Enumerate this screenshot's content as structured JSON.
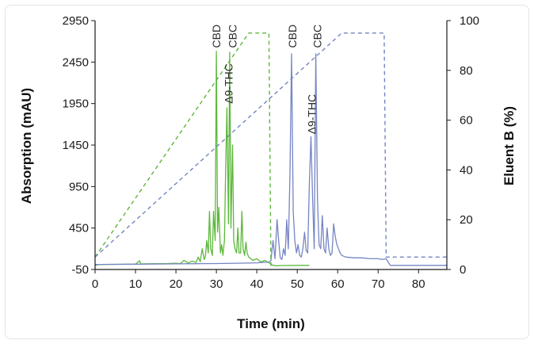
{
  "chart_data": {
    "type": "line",
    "xlabel": "Time (min)",
    "ylabel": "Absorption (mAU)",
    "y2label": "Eluent B (%)",
    "xlim": [
      0,
      87
    ],
    "ylim": [
      -50,
      2950
    ],
    "y2lim": [
      0,
      100
    ],
    "xticks": [
      "0",
      "10",
      "20",
      "30",
      "40",
      "50",
      "60",
      "70",
      "80"
    ],
    "yticks": [
      "-50",
      "450",
      "950",
      "1450",
      "1950",
      "2450",
      "2950"
    ],
    "y2ticks": [
      "0",
      "20",
      "40",
      "60",
      "80",
      "100"
    ],
    "grid": false,
    "colors": {
      "green": "#5db83c",
      "blue": "#7585c3",
      "axis": "#1a1a1a"
    },
    "series": [
      {
        "color": "#5db83c",
        "axis": "left",
        "style": "solid",
        "x": [
          0,
          1,
          5,
          10,
          11,
          11.3,
          11.6,
          15,
          18,
          20,
          21,
          22,
          23,
          24,
          25,
          25.5,
          26,
          26.5,
          27,
          27.3,
          27.6,
          28,
          28.3,
          28.6,
          29,
          29.3,
          29.7,
          30,
          30.3,
          30.6,
          31,
          31.3,
          31.6,
          32,
          32.3,
          32.6,
          33,
          33.3,
          33.6,
          34,
          34.3,
          34.6,
          35,
          35.3,
          35.6,
          36,
          36.3,
          36.6,
          37,
          37.3,
          37.6,
          38,
          39,
          40,
          41,
          42,
          43,
          43.5,
          44,
          45,
          46,
          50,
          53
        ],
        "y": [
          0,
          10,
          12,
          15,
          55,
          15,
          18,
          20,
          22,
          25,
          20,
          60,
          28,
          50,
          35,
          100,
          45,
          200,
          70,
          110,
          300,
          150,
          650,
          200,
          120,
          650,
          300,
          2580,
          400,
          700,
          150,
          250,
          120,
          300,
          1150,
          1900,
          500,
          2570,
          450,
          1450,
          300,
          200,
          150,
          450,
          150,
          150,
          650,
          200,
          120,
          280,
          150,
          100,
          60,
          80,
          40,
          60,
          30,
          15,
          0,
          -5,
          -2,
          0,
          0
        ]
      },
      {
        "color": "#7585c3",
        "axis": "left",
        "style": "solid",
        "x": [
          0,
          5,
          10,
          15,
          20,
          25,
          30,
          35,
          40,
          43,
          43.5,
          44,
          44.5,
          45,
          45.4,
          45.8,
          46.2,
          46.6,
          47,
          47.4,
          47.8,
          48.2,
          48.6,
          49,
          49.4,
          49.8,
          50.2,
          50.6,
          51,
          51.4,
          51.8,
          52.2,
          52.6,
          53,
          53.4,
          53.8,
          54.2,
          54.6,
          55,
          55.4,
          55.8,
          56.2,
          56.6,
          57,
          57.4,
          57.8,
          58.2,
          58.6,
          59,
          59.4,
          59.8,
          60.2,
          60.6,
          61,
          62,
          64,
          66,
          68,
          70,
          71,
          72,
          72.5,
          73,
          75,
          80,
          87
        ],
        "y": [
          10,
          12,
          14,
          16,
          18,
          20,
          22,
          25,
          30,
          40,
          60,
          300,
          80,
          550,
          300,
          90,
          70,
          200,
          120,
          550,
          200,
          1100,
          2550,
          650,
          300,
          150,
          250,
          120,
          100,
          200,
          400,
          180,
          150,
          1000,
          1550,
          800,
          200,
          2550,
          800,
          250,
          200,
          600,
          200,
          150,
          450,
          200,
          120,
          150,
          500,
          350,
          250,
          200,
          150,
          120,
          100,
          90,
          90,
          80,
          80,
          70,
          80,
          40,
          0,
          0,
          0,
          0
        ]
      },
      {
        "color": "#5db83c",
        "axis": "right",
        "style": "dashed",
        "x": [
          0,
          38,
          43,
          43.5
        ],
        "y": [
          5,
          95,
          95,
          0
        ]
      },
      {
        "color": "#7585c3",
        "axis": "right",
        "style": "dashed",
        "x": [
          0,
          61,
          71.5,
          72,
          87
        ],
        "y": [
          5,
          95,
          95,
          5,
          5
        ]
      }
    ],
    "annotations": [
      {
        "text": "CBD",
        "x": 30,
        "y": 2620,
        "color": "#2a2a2a"
      },
      {
        "text": "CBC",
        "x": 34,
        "y": 2620,
        "color": "#2a2a2a"
      },
      {
        "text": "Δ9-THC",
        "x": 33,
        "y": 1950,
        "color": "#2a2a2a"
      },
      {
        "text": "CBD",
        "x": 48.8,
        "y": 2620,
        "color": "#2a2a2a"
      },
      {
        "text": "CBC",
        "x": 55,
        "y": 2620,
        "color": "#2a2a2a"
      },
      {
        "text": "Δ9-THC",
        "x": 53.6,
        "y": 1580,
        "color": "#2a2a2a"
      }
    ]
  }
}
